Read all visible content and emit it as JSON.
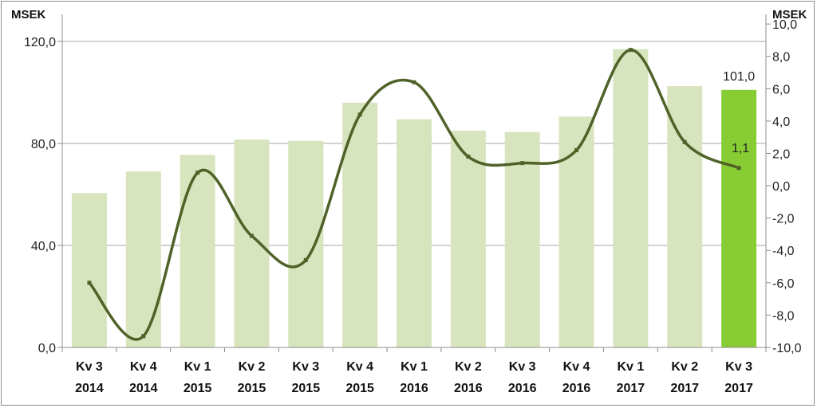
{
  "chart_data": {
    "type": "bar",
    "left_axis_unit": "MSEK",
    "right_axis_unit": "MSEK",
    "categories": [
      [
        "Kv 3",
        "2014"
      ],
      [
        "Kv 4",
        "2014"
      ],
      [
        "Kv 1",
        "2015"
      ],
      [
        "Kv 2",
        "2015"
      ],
      [
        "Kv 3",
        "2015"
      ],
      [
        "Kv 4",
        "2015"
      ],
      [
        "Kv 1",
        "2016"
      ],
      [
        "Kv 2",
        "2016"
      ],
      [
        "Kv 3",
        "2016"
      ],
      [
        "Kv 4",
        "2016"
      ],
      [
        "Kv 1",
        "2017"
      ],
      [
        "Kv 2",
        "2017"
      ],
      [
        "Kv 3",
        "2017"
      ]
    ],
    "series": [
      {
        "type": "bar",
        "axis": "left",
        "values": [
          60.5,
          69.0,
          75.5,
          81.5,
          81.0,
          96.0,
          89.5,
          85.0,
          84.5,
          90.5,
          117.0,
          102.5,
          101.0
        ],
        "color": "#d7e4bd",
        "highlight_color": "#88cc33",
        "highlight_index": 12,
        "labels": [
          {
            "index": 12,
            "text": "101,0"
          }
        ]
      },
      {
        "type": "line",
        "axis": "right",
        "smooth": true,
        "values": [
          -6.0,
          -9.3,
          0.8,
          -3.1,
          -4.6,
          4.4,
          6.4,
          1.8,
          1.4,
          2.2,
          8.4,
          2.7,
          1.1
        ],
        "color": "#4f6228",
        "labels": [
          {
            "index": 12,
            "text": "1,1"
          }
        ]
      }
    ],
    "left_axis": {
      "min": 0,
      "max": 130,
      "ticks": [
        0,
        40,
        80,
        120
      ],
      "tick_labels": [
        "0,0",
        "40,0",
        "80,0",
        "120,0"
      ]
    },
    "right_axis": {
      "min": -10,
      "max": 10.5,
      "ticks": [
        -10,
        -8,
        -6,
        -4,
        -2,
        0,
        2,
        4,
        6,
        8,
        10
      ],
      "tick_labels": [
        "-10,0",
        "-8,0",
        "-6,0",
        "-4,0",
        "-2,0",
        "0,0",
        "2,0",
        "4,0",
        "6,0",
        "8,0",
        "10,0"
      ]
    },
    "gridlines": true,
    "legend": "none"
  }
}
